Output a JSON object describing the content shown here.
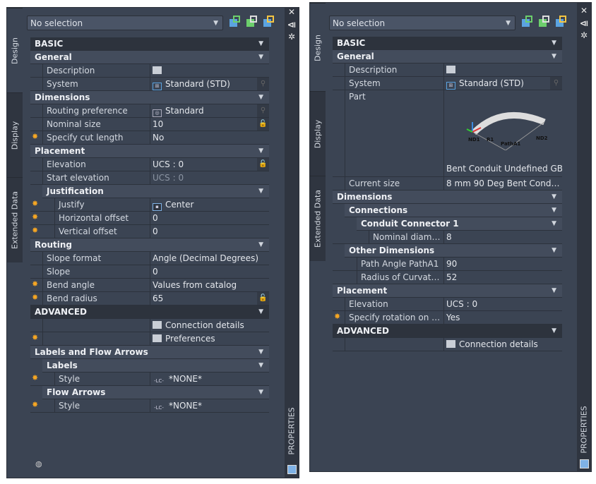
{
  "colors": {
    "panel": "#3b4453",
    "accent_star": "#f5a623",
    "lock": "#f5a623"
  },
  "left": {
    "selection": "No selection",
    "tabs": [
      "Design",
      "Display",
      "Extended Data"
    ],
    "title": "PROPERTIES",
    "toolbar": [
      "add-selection-icon",
      "quick-select-icon",
      "select-objects-icon"
    ],
    "rows": [
      {
        "t": "section",
        "label": "BASIC"
      },
      {
        "t": "group",
        "label": "General",
        "lv": 0
      },
      {
        "t": "prop",
        "lv": 1,
        "label": "Description",
        "icon": "table",
        "value": ""
      },
      {
        "t": "prop",
        "lv": 1,
        "label": "System",
        "icon": "system",
        "value": "Standard (STD)",
        "trail": "search"
      },
      {
        "t": "group",
        "label": "Dimensions",
        "lv": 0
      },
      {
        "t": "prop",
        "lv": 1,
        "label": "Routing preference",
        "icon": "routing",
        "value": "Standard",
        "trail": "search"
      },
      {
        "t": "prop",
        "lv": 1,
        "label": "Nominal size",
        "value": "10",
        "trail": "lock"
      },
      {
        "t": "prop",
        "lv": 1,
        "label": "Specify cut length",
        "value": "No",
        "star": true
      },
      {
        "t": "group",
        "label": "Placement",
        "lv": 0
      },
      {
        "t": "prop",
        "lv": 1,
        "label": "Elevation",
        "value": "UCS : 0",
        "trail": "lock"
      },
      {
        "t": "prop",
        "lv": 1,
        "label": "Start elevation",
        "value": "UCS : 0",
        "dim": true
      },
      {
        "t": "group",
        "label": "Justification",
        "lv": 1
      },
      {
        "t": "prop",
        "lv": 2,
        "label": "Justify",
        "icon": "justify",
        "value": "Center",
        "star": true
      },
      {
        "t": "prop",
        "lv": 2,
        "label": "Horizontal offset",
        "value": "0",
        "star": true
      },
      {
        "t": "prop",
        "lv": 2,
        "label": "Vertical offset",
        "value": "0",
        "star": true
      },
      {
        "t": "group",
        "label": "Routing",
        "lv": 0
      },
      {
        "t": "prop",
        "lv": 1,
        "label": "Slope format",
        "value": "Angle (Decimal Degrees)"
      },
      {
        "t": "prop",
        "lv": 1,
        "label": "Slope",
        "value": "0"
      },
      {
        "t": "prop",
        "lv": 1,
        "label": "Bend angle",
        "value": "Values from catalog",
        "star": true
      },
      {
        "t": "prop",
        "lv": 1,
        "label": "Bend radius",
        "value": "65",
        "star": true,
        "trail": "lock"
      },
      {
        "t": "section",
        "label": "ADVANCED"
      },
      {
        "t": "prop",
        "lv": 1,
        "label": "",
        "icon": "table",
        "value": "Connection details"
      },
      {
        "t": "prop",
        "lv": 1,
        "label": "",
        "icon": "table",
        "value": "Preferences",
        "star": true
      },
      {
        "t": "group",
        "label": "Labels and Flow Arrows",
        "lv": 0
      },
      {
        "t": "group",
        "label": "Labels",
        "lv": 1
      },
      {
        "t": "prop",
        "lv": 2,
        "label": "Style",
        "icon": "label",
        "value": "*NONE*",
        "star": true
      },
      {
        "t": "group",
        "label": "Flow Arrows",
        "lv": 1
      },
      {
        "t": "prop",
        "lv": 2,
        "label": "Style",
        "icon": "label",
        "value": "*NONE*",
        "star": true
      }
    ]
  },
  "right": {
    "selection": "No selection",
    "tabs": [
      "Design",
      "Display",
      "Extended Data"
    ],
    "title": "PROPERTIES",
    "part_labels": [
      "ND1",
      "R1",
      "PathA1",
      "ND2"
    ],
    "rows": [
      {
        "t": "section",
        "label": "BASIC"
      },
      {
        "t": "group",
        "label": "General",
        "lv": 0
      },
      {
        "t": "prop",
        "lv": 1,
        "label": "Description",
        "icon": "table",
        "value": ""
      },
      {
        "t": "prop",
        "lv": 1,
        "label": "System",
        "icon": "system",
        "value": "Standard (STD)",
        "trail": "search"
      },
      {
        "t": "part",
        "lv": 1,
        "label": "Part",
        "value": "Bent Conduit Undefined GB..."
      },
      {
        "t": "prop",
        "lv": 1,
        "label": "Current size",
        "value": "8 mm 90 Deg Bent Conduit..."
      },
      {
        "t": "group",
        "label": "Dimensions",
        "lv": 0
      },
      {
        "t": "group",
        "label": "Connections",
        "lv": 1
      },
      {
        "t": "group",
        "label": "Conduit Connector 1",
        "lv": 2
      },
      {
        "t": "prop",
        "lv": 3,
        "label": "Nominal diameter",
        "value": "8"
      },
      {
        "t": "group",
        "label": "Other Dimensions",
        "lv": 1
      },
      {
        "t": "prop",
        "lv": 2,
        "label": "Path Angle PathA1",
        "value": "90"
      },
      {
        "t": "prop",
        "lv": 2,
        "label": "Radius of Curvature...",
        "value": "52"
      },
      {
        "t": "group",
        "label": "Placement",
        "lv": 0
      },
      {
        "t": "prop",
        "lv": 1,
        "label": "Elevation",
        "value": "UCS : 0"
      },
      {
        "t": "prop",
        "lv": 1,
        "label": "Specify rotation on scr...",
        "value": "Yes",
        "star": true
      },
      {
        "t": "section",
        "label": "ADVANCED"
      },
      {
        "t": "prop",
        "lv": 1,
        "label": "",
        "icon": "table",
        "value": "Connection details"
      }
    ]
  }
}
